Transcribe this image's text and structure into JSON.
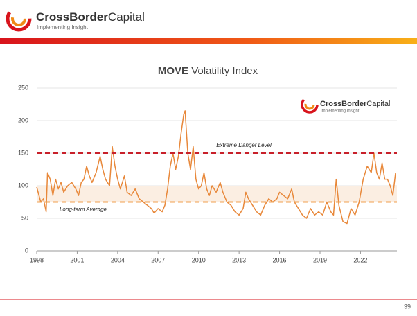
{
  "header": {
    "brand_bold": "CrossBorder",
    "brand_rest": "Capital",
    "tagline": "Implementing Insight"
  },
  "chart_data": {
    "type": "line",
    "title_bold": "MOVE",
    "title_rest": "Volatility Index",
    "x": [
      1998.0,
      1998.3,
      1998.5,
      1998.7,
      1998.8,
      1999.0,
      1999.2,
      1999.4,
      1999.6,
      1999.8,
      2000.0,
      2000.3,
      2000.6,
      2000.9,
      2001.1,
      2001.3,
      2001.5,
      2001.7,
      2001.9,
      2002.1,
      2002.4,
      2002.7,
      2002.9,
      2003.1,
      2003.4,
      2003.6,
      2003.8,
      2004.0,
      2004.2,
      2004.5,
      2004.7,
      2005.0,
      2005.3,
      2005.6,
      2005.9,
      2006.2,
      2006.5,
      2006.7,
      2007.0,
      2007.3,
      2007.5,
      2007.7,
      2007.9,
      2008.1,
      2008.3,
      2008.5,
      2008.7,
      2008.9,
      2009.0,
      2009.2,
      2009.4,
      2009.6,
      2009.8,
      2010.0,
      2010.2,
      2010.4,
      2010.6,
      2010.8,
      2011.0,
      2011.3,
      2011.6,
      2011.8,
      2012.1,
      2012.4,
      2012.7,
      2013.0,
      2013.3,
      2013.5,
      2013.7,
      2014.0,
      2014.3,
      2014.6,
      2014.9,
      2015.2,
      2015.5,
      2015.8,
      2016.0,
      2016.3,
      2016.6,
      2016.9,
      2017.1,
      2017.4,
      2017.7,
      2018.0,
      2018.3,
      2018.6,
      2018.9,
      2019.2,
      2019.5,
      2019.8,
      2020.0,
      2020.2,
      2020.4,
      2020.7,
      2021.0,
      2021.3,
      2021.6,
      2021.9,
      2022.2,
      2022.5,
      2022.8,
      2023.0,
      2023.2,
      2023.4,
      2023.6,
      2023.8,
      2024.0,
      2024.2,
      2024.4,
      2024.6
    ],
    "series": [
      {
        "color": "#e8883a",
        "values": [
          98,
          75,
          80,
          60,
          120,
          110,
          85,
          110,
          95,
          105,
          90,
          100,
          105,
          95,
          85,
          105,
          110,
          130,
          115,
          105,
          120,
          145,
          125,
          110,
          100,
          160,
          130,
          110,
          95,
          115,
          90,
          85,
          95,
          80,
          75,
          70,
          65,
          58,
          65,
          60,
          70,
          95,
          130,
          150,
          125,
          145,
          180,
          210,
          215,
          150,
          125,
          160,
          110,
          95,
          100,
          120,
          95,
          85,
          100,
          90,
          105,
          90,
          75,
          70,
          60,
          55,
          65,
          90,
          80,
          70,
          60,
          55,
          70,
          80,
          75,
          80,
          90,
          85,
          80,
          95,
          75,
          65,
          55,
          50,
          65,
          55,
          60,
          55,
          75,
          60,
          55,
          110,
          70,
          45,
          42,
          65,
          55,
          75,
          110,
          130,
          120,
          150,
          120,
          110,
          135,
          110,
          110,
          100,
          85,
          120
        ]
      }
    ],
    "xlim": [
      1998,
      2024.7
    ],
    "xticks": [
      1998,
      2001,
      2004,
      2007,
      2010,
      2013,
      2016,
      2019,
      2022
    ],
    "ylim": [
      0,
      250
    ],
    "yticks": [
      0,
      50,
      100,
      150,
      200,
      250
    ],
    "shaded_range": [
      75,
      100
    ],
    "shaded_color": "#fbeee2",
    "reference_lines": [
      {
        "value": 150,
        "label": "Extreme Danger Level",
        "color": "#c8202a"
      },
      {
        "value": 75,
        "label": "Long-term Average",
        "color": "#f0a050"
      }
    ]
  },
  "footer": {
    "page_number": "39"
  }
}
